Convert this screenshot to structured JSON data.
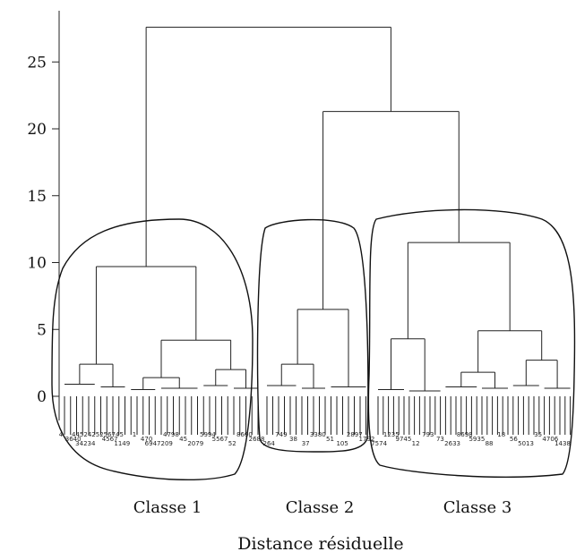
{
  "chart_data": {
    "type": "dendrogram",
    "xlabel": "Distance résiduelle",
    "ylim": [
      0,
      27.5
    ],
    "yticks": [
      0,
      5,
      10,
      15,
      20,
      25
    ],
    "clusters": [
      {
        "name": "Classe 1",
        "join_height": 9.7
      },
      {
        "name": "Classe 2",
        "join_height": 6.5
      },
      {
        "name": "Classe 3",
        "join_height": 11.5
      }
    ],
    "merges": [
      {
        "children": [
          "Classe 2",
          "Classe 3"
        ],
        "height": 21.3
      },
      {
        "children": [
          "Classe 1",
          "Classe 2 + Classe 3"
        ],
        "height": 27.6
      }
    ],
    "leaf_labels": [
      "4",
      "3640",
      "34234",
      "4452425256745",
      "4567",
      "1149",
      "1",
      "470",
      "6947209",
      "4798",
      "45",
      "2079",
      "5994",
      "5567",
      "52",
      "8600",
      "2688",
      "264",
      "749",
      "38",
      "37",
      "3380",
      "51",
      "105",
      "2897",
      "1792",
      "7574",
      "1235",
      "9745",
      "12",
      "793",
      "73",
      "2633",
      "8698",
      "5935",
      "88",
      "18",
      "56",
      "5013",
      "35",
      "4706",
      "1438"
    ]
  }
}
